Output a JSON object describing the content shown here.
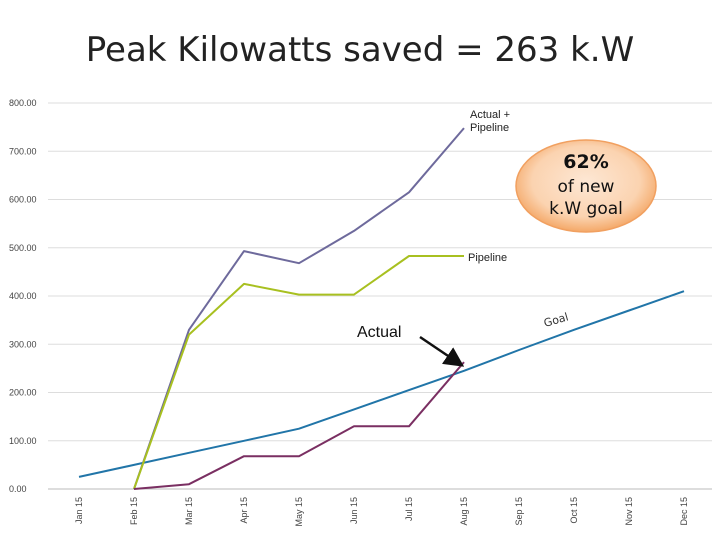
{
  "title": "Peak Kilowatts saved = 263 k.W",
  "chart_data": {
    "type": "line",
    "categories": [
      "Jan 15",
      "Feb 15",
      "Mar 15",
      "Apr 15",
      "May 15",
      "Jun 15",
      "Jul 15",
      "Aug 15",
      "Sep 15",
      "Oct 15",
      "Nov 15",
      "Dec 15"
    ],
    "ylim": [
      0,
      800
    ],
    "yticks": [
      "0.00",
      "100.00",
      "200.00",
      "300.00",
      "400.00",
      "500.00",
      "600.00",
      "700.00",
      "800.00"
    ],
    "grid": true,
    "series": [
      {
        "name": "Goal",
        "color": "#2175a8",
        "values": [
          25,
          50,
          75,
          100,
          125,
          165,
          205,
          245,
          288,
          330,
          370,
          410
        ]
      },
      {
        "name": "Actual + Pipeline",
        "color": "#6e6a9c",
        "values": [
          null,
          0,
          330,
          493,
          468,
          535,
          615,
          748,
          null,
          null,
          null,
          null
        ]
      },
      {
        "name": "Pipeline",
        "color": "#a8c020",
        "values": [
          null,
          0,
          320,
          425,
          403,
          403,
          483,
          483,
          null,
          null,
          null,
          null
        ]
      },
      {
        "name": "Actual",
        "color": "#7a2f62",
        "values": [
          null,
          0,
          10,
          68,
          68,
          130,
          130,
          263,
          null,
          null,
          null,
          null
        ]
      }
    ],
    "annotations": {
      "actual_pipeline_line1": "Actual +",
      "actual_pipeline_line2": "Pipeline",
      "pipeline": "Pipeline",
      "actual": "Actual",
      "goal": "Goal"
    },
    "badge": {
      "percent": "62%",
      "line1": "of new",
      "line2": "k.W goal"
    }
  }
}
